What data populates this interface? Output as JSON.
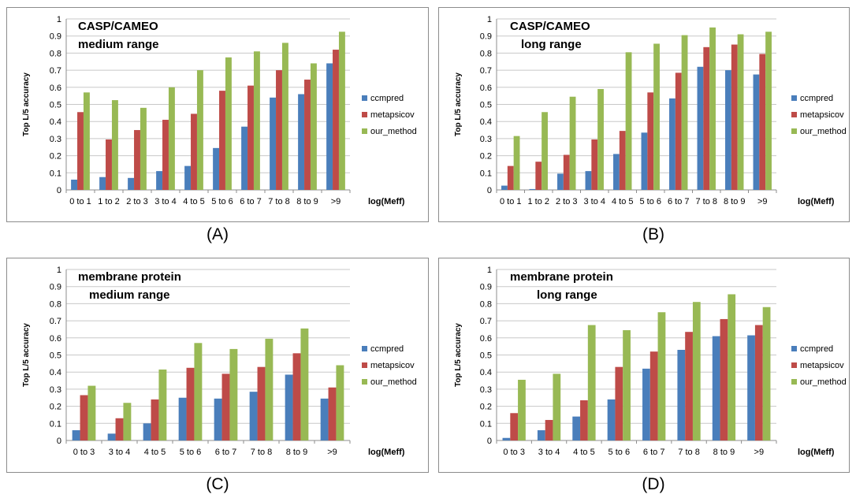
{
  "colors": {
    "ccmpred": "#4a7ebb",
    "metapsicov": "#be4b48",
    "our_method": "#98b954",
    "grid": "#c8c8c8",
    "axis": "#8c8c8c"
  },
  "legend_names": [
    "ccmpred",
    "metapsicov",
    "our_method"
  ],
  "chart_data": [
    {
      "type": "bar",
      "caption": "(A)",
      "annotation_lines": [
        "CASP/CAMEO",
        "medium range"
      ],
      "ylabel": "Top L/5 accuracy",
      "xlabel": "log(Meff)",
      "ylim": [
        0,
        1
      ],
      "yticks": [
        "0",
        "0.1",
        "0.2",
        "0.3",
        "0.4",
        "0.5",
        "0.6",
        "0.7",
        "0.8",
        "0.9",
        "1"
      ],
      "legend_position": "right",
      "grid": true,
      "categories": [
        "0 to 1",
        "1 to 2",
        "2 to 3",
        "3 to 4",
        "4 to 5",
        "5 to 6",
        "6 to 7",
        "7 to 8",
        "8 to 9",
        ">9"
      ],
      "series": [
        {
          "name": "ccmpred",
          "values": [
            0.06,
            0.075,
            0.07,
            0.11,
            0.14,
            0.245,
            0.37,
            0.54,
            0.56,
            0.74
          ]
        },
        {
          "name": "metapsicov",
          "values": [
            0.455,
            0.295,
            0.35,
            0.41,
            0.445,
            0.58,
            0.61,
            0.7,
            0.645,
            0.82
          ]
        },
        {
          "name": "our_method",
          "values": [
            0.57,
            0.525,
            0.48,
            0.6,
            0.7,
            0.775,
            0.81,
            0.86,
            0.74,
            0.925
          ]
        }
      ]
    },
    {
      "type": "bar",
      "caption": "(B)",
      "annotation_lines": [
        "CASP/CAMEO",
        "long range"
      ],
      "ylabel": "Top L/5 accuracy",
      "xlabel": "log(Meff)",
      "ylim": [
        0,
        1
      ],
      "yticks": [
        "0",
        "0.1",
        "0.2",
        "0.3",
        "0.4",
        "0.5",
        "0.6",
        "0.7",
        "0.8",
        "0.9",
        "1"
      ],
      "legend_position": "right",
      "grid": true,
      "categories": [
        "0 to 1",
        "1 to 2",
        "2 to 3",
        "3 to 4",
        "4 to 5",
        "5 to 6",
        "6 to 7",
        "7 to 8",
        "8 to 9",
        ">9"
      ],
      "series": [
        {
          "name": "ccmpred",
          "values": [
            0.025,
            0.005,
            0.095,
            0.11,
            0.21,
            0.335,
            0.535,
            0.72,
            0.7,
            0.675
          ]
        },
        {
          "name": "metapsicov",
          "values": [
            0.14,
            0.165,
            0.205,
            0.295,
            0.345,
            0.57,
            0.685,
            0.835,
            0.85,
            0.795
          ]
        },
        {
          "name": "our_method",
          "values": [
            0.315,
            0.455,
            0.545,
            0.59,
            0.805,
            0.855,
            0.905,
            0.95,
            0.91,
            0.925
          ]
        }
      ]
    },
    {
      "type": "bar",
      "caption": "(C)",
      "annotation_lines": [
        "membrane protein",
        "medium range"
      ],
      "ylabel": "Top L/5 accuracy",
      "xlabel": "log(Meff)",
      "ylim": [
        0,
        1
      ],
      "yticks": [
        "0",
        "0.1",
        "0.2",
        "0.3",
        "0.4",
        "0.5",
        "0.6",
        "0.7",
        "0.8",
        "0.9",
        "1"
      ],
      "legend_position": "right",
      "grid": true,
      "categories": [
        "0 to 3",
        "3 to 4",
        "4 to 5",
        "5 to 6",
        "6 to 7",
        "7 to 8",
        "8 to 9",
        ">9"
      ],
      "series": [
        {
          "name": "ccmpred",
          "values": [
            0.06,
            0.04,
            0.1,
            0.25,
            0.245,
            0.285,
            0.385,
            0.245
          ]
        },
        {
          "name": "metapsicov",
          "values": [
            0.265,
            0.13,
            0.24,
            0.425,
            0.39,
            0.43,
            0.51,
            0.31
          ]
        },
        {
          "name": "our_method",
          "values": [
            0.32,
            0.22,
            0.415,
            0.57,
            0.535,
            0.595,
            0.655,
            0.44
          ]
        }
      ]
    },
    {
      "type": "bar",
      "caption": "(D)",
      "annotation_lines": [
        "membrane protein",
        "long range"
      ],
      "ylabel": "Top L/5 accuracy",
      "xlabel": "log(Meff)",
      "ylim": [
        0,
        1
      ],
      "yticks": [
        "0",
        "0.1",
        "0.2",
        "0.3",
        "0.4",
        "0.5",
        "0.6",
        "0.7",
        "0.8",
        "0.9",
        "1"
      ],
      "legend_position": "right",
      "grid": true,
      "categories": [
        "0 to 3",
        "3 to 4",
        "4 to 5",
        "5 to 6",
        "6 to 7",
        "7 to 8",
        "8 to 9",
        ">9"
      ],
      "series": [
        {
          "name": "ccmpred",
          "values": [
            0.015,
            0.06,
            0.14,
            0.24,
            0.42,
            0.53,
            0.61,
            0.615
          ]
        },
        {
          "name": "metapsicov",
          "values": [
            0.16,
            0.12,
            0.235,
            0.43,
            0.52,
            0.635,
            0.71,
            0.675
          ]
        },
        {
          "name": "our_method",
          "values": [
            0.355,
            0.39,
            0.675,
            0.645,
            0.75,
            0.81,
            0.855,
            0.78
          ]
        }
      ]
    }
  ]
}
